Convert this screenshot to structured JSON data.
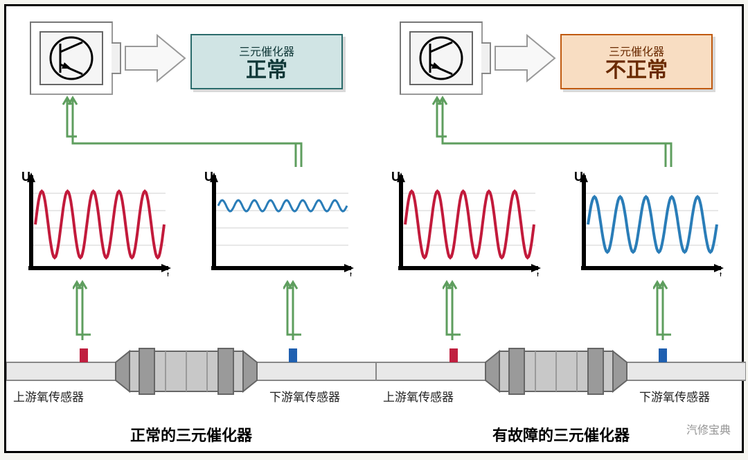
{
  "colors": {
    "frame": "#000000",
    "bg": "#ffffff",
    "ecu_border": "#777777",
    "ecu_fill": "#f5f5f5",
    "arrow_border": "#888888",
    "arrow_fill": "#f8f8f8",
    "connector": "#5e9e5e",
    "red_wave": "#c21a3b",
    "blue_wave": "#2a7db8",
    "axis": "#000000",
    "grid": "#d0d0d0",
    "upstream_sensor": "#c02040",
    "downstream_sensor": "#2060b0",
    "cat_body": "#c8c8c8",
    "cat_dark": "#9a9a9a",
    "pipe": "#e8e8e8",
    "pipe_border": "#888888"
  },
  "typography": {
    "status_sub_fontsize": 16,
    "status_main_fontsize": 30,
    "axis_label_fontsize": 18,
    "sensor_label_fontsize": 17,
    "caption_fontsize": 22
  },
  "panels": {
    "left": {
      "status_sub": "三元催化器",
      "status_main": "正常",
      "status_bg": "#d0e4e4",
      "status_border": "#2a6b6b",
      "status_text": "#103838",
      "upstream_wave": {
        "type": "sine",
        "amplitude": 48,
        "cycles": 5,
        "baseline": 75,
        "color": "#c21a3b",
        "line_width": 4
      },
      "downstream_wave": {
        "type": "sine",
        "amplitude": 8,
        "cycles": 8,
        "baseline": 48,
        "color": "#2a7db8",
        "line_width": 3
      },
      "upstream_sensor_label": "上游氧传感器",
      "downstream_sensor_label": "下游氧传感器",
      "caption": "正常的三元催化器"
    },
    "right": {
      "status_sub": "三元催化器",
      "status_main": "不正常",
      "status_bg": "#f8ddc2",
      "status_border": "#c05a10",
      "status_text": "#6a2a00",
      "upstream_wave": {
        "type": "sine",
        "amplitude": 48,
        "cycles": 5,
        "baseline": 75,
        "color": "#c21a3b",
        "line_width": 4
      },
      "downstream_wave": {
        "type": "sine",
        "amplitude": 40,
        "cycles": 5,
        "baseline": 75,
        "color": "#2a7db8",
        "line_width": 4
      },
      "upstream_sensor_label": "上游氧传感器",
      "downstream_sensor_label": "下游氧传感器",
      "caption": "有故障的三元催化器"
    }
  },
  "axis_label": "U",
  "time_label": "t",
  "watermark": "汽修宝典"
}
